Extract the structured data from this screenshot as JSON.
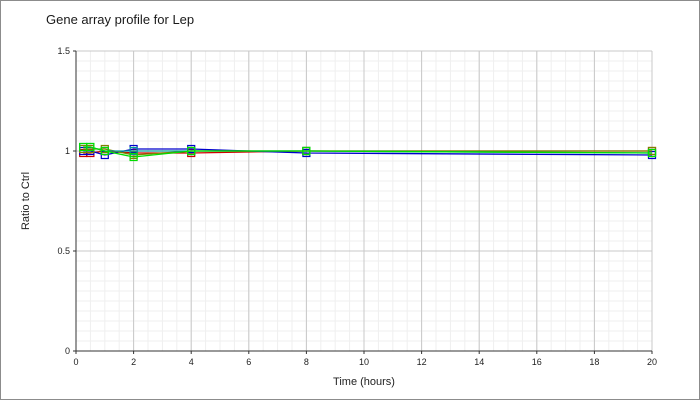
{
  "chart_data": {
    "type": "line",
    "title": "Gene array profile for Lep",
    "xlabel": "Time (hours)",
    "ylabel": "Ratio to Ctrl",
    "xlim": [
      0,
      20
    ],
    "ylim": [
      0,
      1.5
    ],
    "x_ticks": [
      0,
      2,
      4,
      6,
      8,
      10,
      12,
      14,
      16,
      18,
      20
    ],
    "y_ticks": [
      0,
      0.5,
      1,
      1.5
    ],
    "y_tick_labels": [
      "0",
      "0.5",
      "1",
      "1.5"
    ],
    "grid": true,
    "series": [
      {
        "color": "#cc0000",
        "points": [
          [
            0.25,
            0.99
          ],
          [
            0.5,
            0.99
          ],
          [
            1,
            1.0
          ],
          [
            2,
            0.99
          ],
          [
            4,
            0.99
          ],
          [
            8,
            1.0
          ],
          [
            20,
            1.0
          ]
        ]
      },
      {
        "color": "#0000cc",
        "points": [
          [
            0.25,
            1.0
          ],
          [
            0.5,
            1.0
          ],
          [
            1,
            0.98
          ],
          [
            2,
            1.01
          ],
          [
            4,
            1.01
          ],
          [
            8,
            0.99
          ],
          [
            20,
            0.98
          ]
        ]
      },
      {
        "color": "#808000",
        "points": [
          [
            0.25,
            1.01
          ],
          [
            0.5,
            1.01
          ],
          [
            1,
            1.01
          ],
          [
            2,
            0.98
          ],
          [
            4,
            1.0
          ],
          [
            8,
            1.0
          ],
          [
            20,
            1.0
          ]
        ]
      },
      {
        "color": "#009999",
        "points": [
          [
            0.25,
            1.02
          ],
          [
            0.5,
            1.02
          ],
          [
            1,
            1.0
          ],
          [
            2,
            1.0
          ],
          [
            4,
            1.0
          ],
          [
            8,
            1.0
          ],
          [
            20,
            0.99
          ]
        ]
      },
      {
        "color": "#00dd00",
        "points": [
          [
            0.25,
            1.02
          ],
          [
            0.5,
            1.02
          ],
          [
            1,
            1.0
          ],
          [
            2,
            0.97
          ],
          [
            4,
            1.0
          ],
          [
            8,
            1.0
          ],
          [
            20,
            0.99
          ]
        ]
      }
    ]
  }
}
